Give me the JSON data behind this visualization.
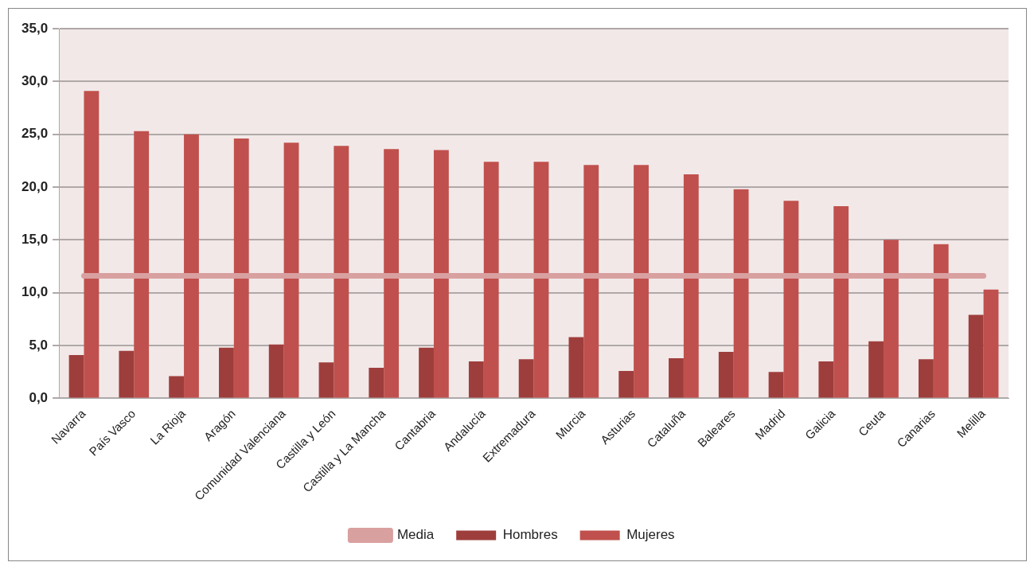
{
  "chart_data": {
    "type": "bar",
    "categories": [
      "Navarra",
      "País Vasco",
      "La Rioja",
      "Aragón",
      "Comunidad Valenciana",
      "Castilla y León",
      "Castilla y La Mancha",
      "Cantabria",
      "Andalucía",
      "Extremadura",
      "Murcia",
      "Asturias",
      "Cataluña",
      "Baleares",
      "Madrid",
      "Galicia",
      "Ceuta",
      "Canarias",
      "Melilla"
    ],
    "series": [
      {
        "name": "Hombres",
        "color": "#9e3e3c",
        "values": [
          4.1,
          4.5,
          2.1,
          4.8,
          5.1,
          3.4,
          2.9,
          4.8,
          3.5,
          3.7,
          5.8,
          2.6,
          3.8,
          4.4,
          2.5,
          3.5,
          5.4,
          3.7,
          7.9
        ]
      },
      {
        "name": "Mujeres",
        "color": "#c0504d",
        "values": [
          29.1,
          25.3,
          25.0,
          24.6,
          24.2,
          23.9,
          23.6,
          23.5,
          22.4,
          22.4,
          22.1,
          22.1,
          21.2,
          19.8,
          18.7,
          18.2,
          15.0,
          14.6,
          10.3
        ]
      },
      {
        "name": "Media",
        "type": "line",
        "color": "#d9a0a0",
        "values": [
          11.6,
          11.6,
          11.6,
          11.6,
          11.6,
          11.6,
          11.6,
          11.6,
          11.6,
          11.6,
          11.6,
          11.6,
          11.6,
          11.6,
          11.6,
          11.6,
          11.6,
          11.6,
          11.6
        ]
      }
    ],
    "ylim": [
      0,
      35
    ],
    "yticks": [
      {
        "value": 0,
        "label": "0,0"
      },
      {
        "value": 5,
        "label": "5,0"
      },
      {
        "value": 10,
        "label": "10,0"
      },
      {
        "value": 15,
        "label": "15,0"
      },
      {
        "value": 20,
        "label": "20,0"
      },
      {
        "value": 25,
        "label": "25,0"
      },
      {
        "value": 30,
        "label": "30,0"
      },
      {
        "value": 35,
        "label": "35,0"
      }
    ],
    "grid": "y",
    "legend": "bottom",
    "marker": "none"
  }
}
